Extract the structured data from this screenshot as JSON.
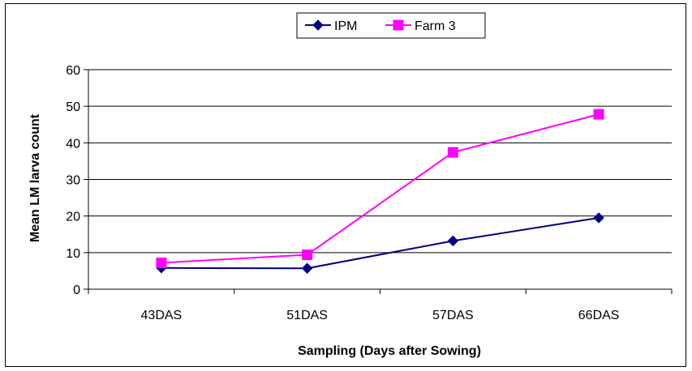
{
  "chart_data": {
    "type": "line",
    "categories": [
      "43DAS",
      "51DAS",
      "57DAS",
      "66DAS"
    ],
    "series": [
      {
        "name": "IPM",
        "values": [
          5.8,
          5.7,
          13.2,
          19.5
        ],
        "color": "#000080",
        "marker": "diamond"
      },
      {
        "name": "Farm 3",
        "values": [
          7.2,
          9.4,
          37.4,
          47.8
        ],
        "color": "#FF00FF",
        "marker": "square"
      }
    ],
    "xlabel": "Sampling (Days after Sowing)",
    "ylabel": "Mean LM larva count",
    "ylim": [
      0,
      60
    ],
    "yticks": [
      0,
      10,
      20,
      30,
      40,
      50,
      60
    ],
    "grid": true,
    "legend": "top-center"
  }
}
